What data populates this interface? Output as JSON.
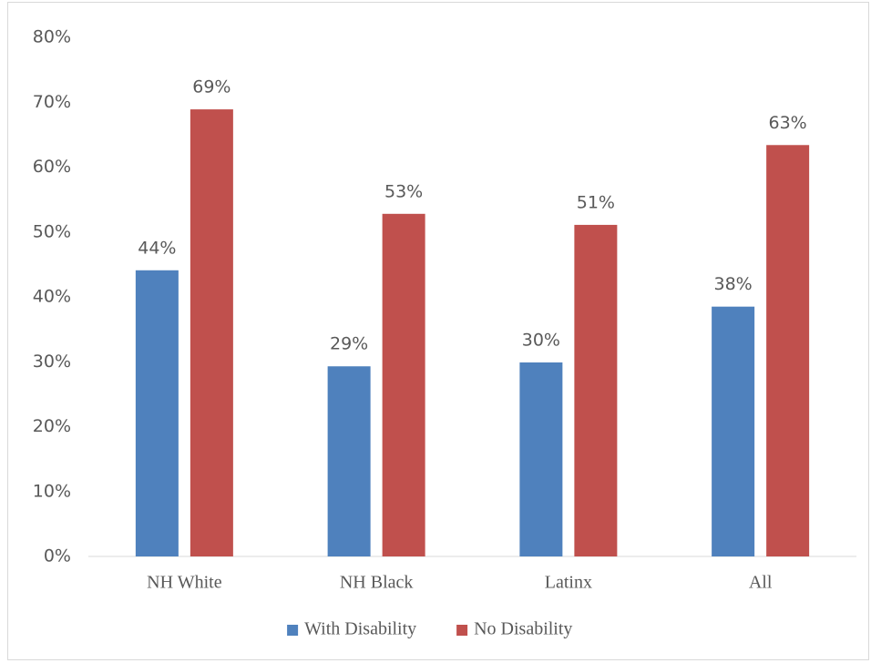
{
  "chart_data": {
    "type": "bar",
    "categories": [
      "NH White",
      "NH Black",
      "Latinx",
      "All"
    ],
    "series": [
      {
        "name": "With Disability",
        "color": "#4f81bd",
        "values": [
          44.1,
          29.3,
          29.9,
          38.5
        ],
        "value_labels": [
          "44%",
          "29%",
          "30%",
          "38%"
        ]
      },
      {
        "name": "No Disability",
        "color": "#c0504d",
        "values": [
          68.9,
          52.8,
          51.1,
          63.4
        ],
        "value_labels": [
          "69%",
          "53%",
          "51%",
          "63%"
        ]
      }
    ],
    "ylim": [
      0,
      80
    ],
    "yticks": [
      {
        "value": 0,
        "label": "0%"
      },
      {
        "value": 10,
        "label": "10%"
      },
      {
        "value": 20,
        "label": "20%"
      },
      {
        "value": 30,
        "label": "30%"
      },
      {
        "value": 40,
        "label": "40%"
      },
      {
        "value": 50,
        "label": "50%"
      },
      {
        "value": 60,
        "label": "60%"
      },
      {
        "value": 70,
        "label": "70%"
      },
      {
        "value": 80,
        "label": "80%"
      }
    ],
    "grid": false,
    "legend": "bottom"
  }
}
